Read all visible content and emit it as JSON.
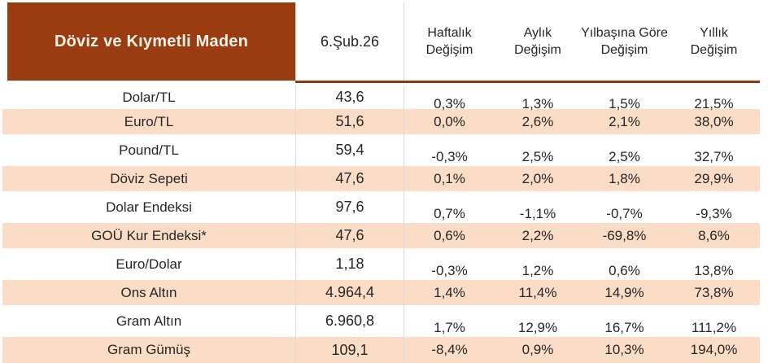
{
  "chart_data": {
    "type": "table",
    "title": "Döviz ve Kıymetli Maden",
    "date": "6.Şub.26",
    "change_columns": [
      {
        "line1": "Haftalık",
        "line2": "Değişim"
      },
      {
        "line1": "Aylık",
        "line2": "Değişim"
      },
      {
        "line1": "Yılbaşına Göre",
        "line2": "Değişim"
      },
      {
        "line1": "Yıllık",
        "line2": "Değişim"
      }
    ],
    "rows": [
      {
        "label": "Dolar/TL",
        "value": "43,6",
        "weekly": "0,3%",
        "monthly": "1,3%",
        "ytd": "1,5%",
        "yearly": "21,5%"
      },
      {
        "label": "Euro/TL",
        "value": "51,6",
        "weekly": "0,0%",
        "monthly": "2,6%",
        "ytd": "2,1%",
        "yearly": "38,0%"
      },
      {
        "label": "Pound/TL",
        "value": "59,4",
        "weekly": "-0,3%",
        "monthly": "2,5%",
        "ytd": "2,5%",
        "yearly": "32,7%"
      },
      {
        "label": "Döviz Sepeti",
        "value": "47,6",
        "weekly": "0,1%",
        "monthly": "2,0%",
        "ytd": "1,8%",
        "yearly": "29,9%"
      },
      {
        "label": "Dolar Endeksi",
        "value": "97,6",
        "weekly": "0,7%",
        "monthly": "-1,1%",
        "ytd": "-0,7%",
        "yearly": "-9,3%"
      },
      {
        "label": "GOÜ Kur Endeksi*",
        "value": "47,6",
        "weekly": "0,6%",
        "monthly": "2,2%",
        "ytd": "-69,8%",
        "yearly": "8,6%"
      },
      {
        "label": "Euro/Dolar",
        "value": "1,18",
        "weekly": "-0,3%",
        "monthly": "1,2%",
        "ytd": "0,6%",
        "yearly": "13,8%"
      },
      {
        "label": "Ons Altın",
        "value": "4.964,4",
        "weekly": "1,4%",
        "monthly": "11,4%",
        "ytd": "14,9%",
        "yearly": "73,8%"
      },
      {
        "label": "Gram Altın",
        "value": "6.960,8",
        "weekly": "1,7%",
        "monthly": "12,9%",
        "ytd": "16,7%",
        "yearly": "111,2%"
      },
      {
        "label": "Gram Gümüş",
        "value": "109,1",
        "weekly": "-8,4%",
        "monthly": "0,9%",
        "ytd": "10,3%",
        "yearly": "194,0%"
      }
    ]
  },
  "colors": {
    "header_bg": "#9A3B10",
    "header_text": "#FCF3E8",
    "row_stripe": "#FBDCC6",
    "header_rule": "#8C3A10",
    "grid_border": "#DADADA",
    "body_text": "#262626"
  }
}
